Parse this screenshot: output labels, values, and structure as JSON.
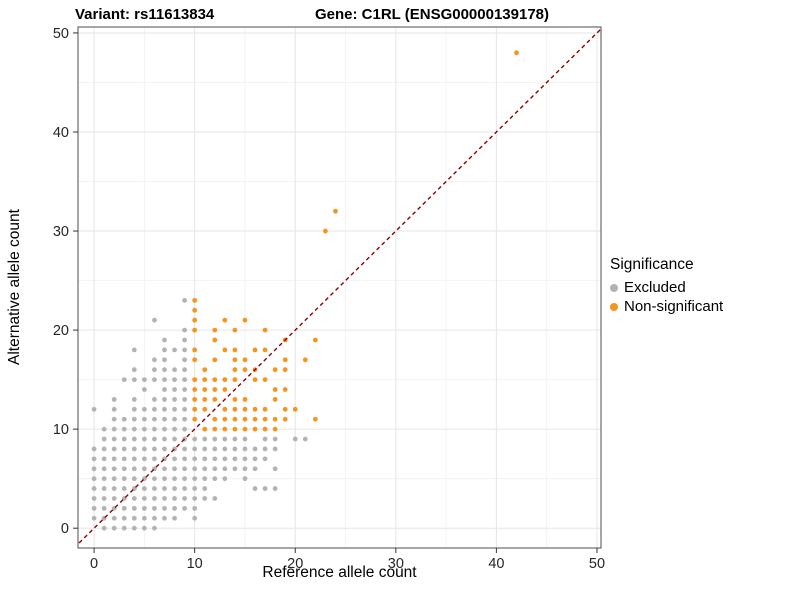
{
  "chart_data": {
    "type": "scatter",
    "titles": {
      "left": "Variant: rs11613834",
      "right": "Gene: C1RL (ENSG00000139178)"
    },
    "xlabel": "Reference allele count",
    "ylabel": "Alternative allele count",
    "xlim": [
      -1.6,
      50.4
    ],
    "ylim": [
      -2.0,
      50.6
    ],
    "xticks": [
      0,
      10,
      20,
      30,
      40,
      50
    ],
    "yticks": [
      0,
      10,
      20,
      30,
      40,
      50
    ],
    "minor_ticks": [
      5,
      15,
      25,
      35,
      45
    ],
    "grid": true,
    "point_radius": 2.4,
    "identity_line": {
      "style": "dashed",
      "color": "#8B0000",
      "from": [
        -2,
        -2
      ],
      "to": [
        51,
        51
      ]
    },
    "legend": {
      "title": "Significance",
      "position": "right",
      "entries": [
        {
          "label": "Excluded",
          "color": "#b3b3b3"
        },
        {
          "label": "Non-significant",
          "color": "#F7941D"
        }
      ]
    },
    "series": [
      {
        "name": "Excluded",
        "color": "#b3b3b3",
        "points": [
          [
            1,
            0
          ],
          [
            2,
            0
          ],
          [
            3,
            0
          ],
          [
            4,
            0
          ],
          [
            5,
            0
          ],
          [
            6,
            0
          ],
          [
            0,
            1
          ],
          [
            1,
            1
          ],
          [
            2,
            1
          ],
          [
            3,
            1
          ],
          [
            4,
            1
          ],
          [
            5,
            1
          ],
          [
            6,
            1
          ],
          [
            7,
            1
          ],
          [
            8,
            1
          ],
          [
            10,
            1
          ],
          [
            0,
            2
          ],
          [
            1,
            2
          ],
          [
            2,
            2
          ],
          [
            3,
            2
          ],
          [
            4,
            2
          ],
          [
            5,
            2
          ],
          [
            6,
            2
          ],
          [
            7,
            2
          ],
          [
            8,
            2
          ],
          [
            9,
            2
          ],
          [
            10,
            2
          ],
          [
            0,
            3
          ],
          [
            1,
            3
          ],
          [
            2,
            3
          ],
          [
            3,
            3
          ],
          [
            4,
            3
          ],
          [
            5,
            3
          ],
          [
            6,
            3
          ],
          [
            7,
            3
          ],
          [
            8,
            3
          ],
          [
            9,
            3
          ],
          [
            10,
            3
          ],
          [
            11,
            3
          ],
          [
            12,
            3
          ],
          [
            0,
            4
          ],
          [
            1,
            4
          ],
          [
            2,
            4
          ],
          [
            3,
            4
          ],
          [
            4,
            4
          ],
          [
            5,
            4
          ],
          [
            6,
            4
          ],
          [
            7,
            4
          ],
          [
            8,
            4
          ],
          [
            9,
            4
          ],
          [
            10,
            4
          ],
          [
            11,
            4
          ],
          [
            16,
            4
          ],
          [
            17,
            4
          ],
          [
            18,
            4
          ],
          [
            0,
            5
          ],
          [
            1,
            5
          ],
          [
            2,
            5
          ],
          [
            3,
            5
          ],
          [
            4,
            5
          ],
          [
            5,
            5
          ],
          [
            6,
            5
          ],
          [
            7,
            5
          ],
          [
            8,
            5
          ],
          [
            9,
            5
          ],
          [
            10,
            5
          ],
          [
            11,
            5
          ],
          [
            12,
            5
          ],
          [
            13,
            5
          ],
          [
            15,
            5
          ],
          [
            0,
            6
          ],
          [
            1,
            6
          ],
          [
            2,
            6
          ],
          [
            3,
            6
          ],
          [
            4,
            6
          ],
          [
            5,
            6
          ],
          [
            6,
            6
          ],
          [
            7,
            6
          ],
          [
            8,
            6
          ],
          [
            9,
            6
          ],
          [
            10,
            6
          ],
          [
            11,
            6
          ],
          [
            12,
            6
          ],
          [
            13,
            6
          ],
          [
            14,
            6
          ],
          [
            15,
            6
          ],
          [
            16,
            6
          ],
          [
            18,
            6
          ],
          [
            0,
            7
          ],
          [
            1,
            7
          ],
          [
            2,
            7
          ],
          [
            3,
            7
          ],
          [
            4,
            7
          ],
          [
            5,
            7
          ],
          [
            6,
            7
          ],
          [
            7,
            7
          ],
          [
            8,
            7
          ],
          [
            9,
            7
          ],
          [
            10,
            7
          ],
          [
            11,
            7
          ],
          [
            12,
            7
          ],
          [
            13,
            7
          ],
          [
            14,
            7
          ],
          [
            15,
            7
          ],
          [
            16,
            7
          ],
          [
            17,
            7
          ],
          [
            0,
            8
          ],
          [
            1,
            8
          ],
          [
            2,
            8
          ],
          [
            3,
            8
          ],
          [
            4,
            8
          ],
          [
            5,
            8
          ],
          [
            6,
            8
          ],
          [
            7,
            8
          ],
          [
            8,
            8
          ],
          [
            9,
            8
          ],
          [
            10,
            8
          ],
          [
            11,
            8
          ],
          [
            12,
            8
          ],
          [
            13,
            8
          ],
          [
            14,
            8
          ],
          [
            15,
            8
          ],
          [
            16,
            8
          ],
          [
            17,
            8
          ],
          [
            18,
            8
          ],
          [
            1,
            9
          ],
          [
            2,
            9
          ],
          [
            3,
            9
          ],
          [
            4,
            9
          ],
          [
            5,
            9
          ],
          [
            6,
            9
          ],
          [
            7,
            9
          ],
          [
            8,
            9
          ],
          [
            9,
            9
          ],
          [
            10,
            9
          ],
          [
            11,
            9
          ],
          [
            12,
            9
          ],
          [
            13,
            9
          ],
          [
            14,
            9
          ],
          [
            15,
            9
          ],
          [
            17,
            9
          ],
          [
            18,
            9
          ],
          [
            20,
            9
          ],
          [
            21,
            9
          ],
          [
            1,
            10
          ],
          [
            2,
            10
          ],
          [
            3,
            10
          ],
          [
            4,
            10
          ],
          [
            5,
            10
          ],
          [
            6,
            10
          ],
          [
            7,
            10
          ],
          [
            8,
            10
          ],
          [
            9,
            10
          ],
          [
            2,
            11
          ],
          [
            3,
            11
          ],
          [
            4,
            11
          ],
          [
            5,
            11
          ],
          [
            6,
            11
          ],
          [
            7,
            11
          ],
          [
            8,
            11
          ],
          [
            9,
            11
          ],
          [
            0,
            12
          ],
          [
            2,
            12
          ],
          [
            4,
            12
          ],
          [
            5,
            12
          ],
          [
            6,
            12
          ],
          [
            7,
            12
          ],
          [
            8,
            12
          ],
          [
            9,
            12
          ],
          [
            2,
            13
          ],
          [
            4,
            13
          ],
          [
            6,
            13
          ],
          [
            7,
            13
          ],
          [
            8,
            13
          ],
          [
            9,
            13
          ],
          [
            5,
            14
          ],
          [
            7,
            14
          ],
          [
            8,
            14
          ],
          [
            9,
            14
          ],
          [
            3,
            15
          ],
          [
            4,
            15
          ],
          [
            5,
            15
          ],
          [
            6,
            15
          ],
          [
            7,
            15
          ],
          [
            8,
            15
          ],
          [
            9,
            15
          ],
          [
            4,
            16
          ],
          [
            6,
            16
          ],
          [
            7,
            16
          ],
          [
            8,
            16
          ],
          [
            9,
            16
          ],
          [
            6,
            17
          ],
          [
            7,
            17
          ],
          [
            9,
            17
          ],
          [
            4,
            18
          ],
          [
            7,
            18
          ],
          [
            8,
            18
          ],
          [
            9,
            18
          ],
          [
            7,
            19
          ],
          [
            9,
            19
          ],
          [
            9,
            20
          ],
          [
            6,
            21
          ],
          [
            9,
            23
          ]
        ]
      },
      {
        "name": "Non-significant",
        "color": "#F7941D",
        "points": [
          [
            11,
            10
          ],
          [
            12,
            10
          ],
          [
            13,
            10
          ],
          [
            14,
            10
          ],
          [
            15,
            10
          ],
          [
            16,
            10
          ],
          [
            17,
            10
          ],
          [
            18,
            10
          ],
          [
            10,
            11
          ],
          [
            12,
            11
          ],
          [
            13,
            11
          ],
          [
            14,
            11
          ],
          [
            15,
            11
          ],
          [
            16,
            11
          ],
          [
            17,
            11
          ],
          [
            18,
            11
          ],
          [
            19,
            11
          ],
          [
            22,
            11
          ],
          [
            10,
            12
          ],
          [
            11,
            12
          ],
          [
            13,
            12
          ],
          [
            14,
            12
          ],
          [
            15,
            12
          ],
          [
            16,
            12
          ],
          [
            17,
            12
          ],
          [
            19,
            12
          ],
          [
            20,
            12
          ],
          [
            10,
            13
          ],
          [
            11,
            13
          ],
          [
            12,
            13
          ],
          [
            14,
            13
          ],
          [
            15,
            13
          ],
          [
            18,
            13
          ],
          [
            10,
            14
          ],
          [
            11,
            14
          ],
          [
            12,
            14
          ],
          [
            13,
            14
          ],
          [
            18,
            14
          ],
          [
            19,
            14
          ],
          [
            10,
            15
          ],
          [
            11,
            15
          ],
          [
            12,
            15
          ],
          [
            13,
            15
          ],
          [
            14,
            15
          ],
          [
            16,
            15
          ],
          [
            17,
            15
          ],
          [
            11,
            16
          ],
          [
            14,
            16
          ],
          [
            15,
            16
          ],
          [
            16,
            16
          ],
          [
            18,
            16
          ],
          [
            19,
            16
          ],
          [
            10,
            17
          ],
          [
            12,
            17
          ],
          [
            14,
            17
          ],
          [
            15,
            17
          ],
          [
            19,
            17
          ],
          [
            21,
            17
          ],
          [
            10,
            18
          ],
          [
            13,
            18
          ],
          [
            14,
            18
          ],
          [
            16,
            18
          ],
          [
            17,
            18
          ],
          [
            12,
            19
          ],
          [
            19,
            19
          ],
          [
            22,
            19
          ],
          [
            10,
            20
          ],
          [
            12,
            20
          ],
          [
            14,
            20
          ],
          [
            17,
            20
          ],
          [
            10,
            21
          ],
          [
            13,
            21
          ],
          [
            15,
            21
          ],
          [
            10,
            22
          ],
          [
            10,
            23
          ],
          [
            23,
            30
          ],
          [
            24,
            32
          ],
          [
            42,
            48
          ]
        ]
      }
    ],
    "colors": {
      "grid_major": "#e6e6e6",
      "grid_minor": "#f3f3f3",
      "panel_border": "#4d4d4d",
      "tick_mark": "#333333",
      "tick_text": "#262626"
    }
  }
}
